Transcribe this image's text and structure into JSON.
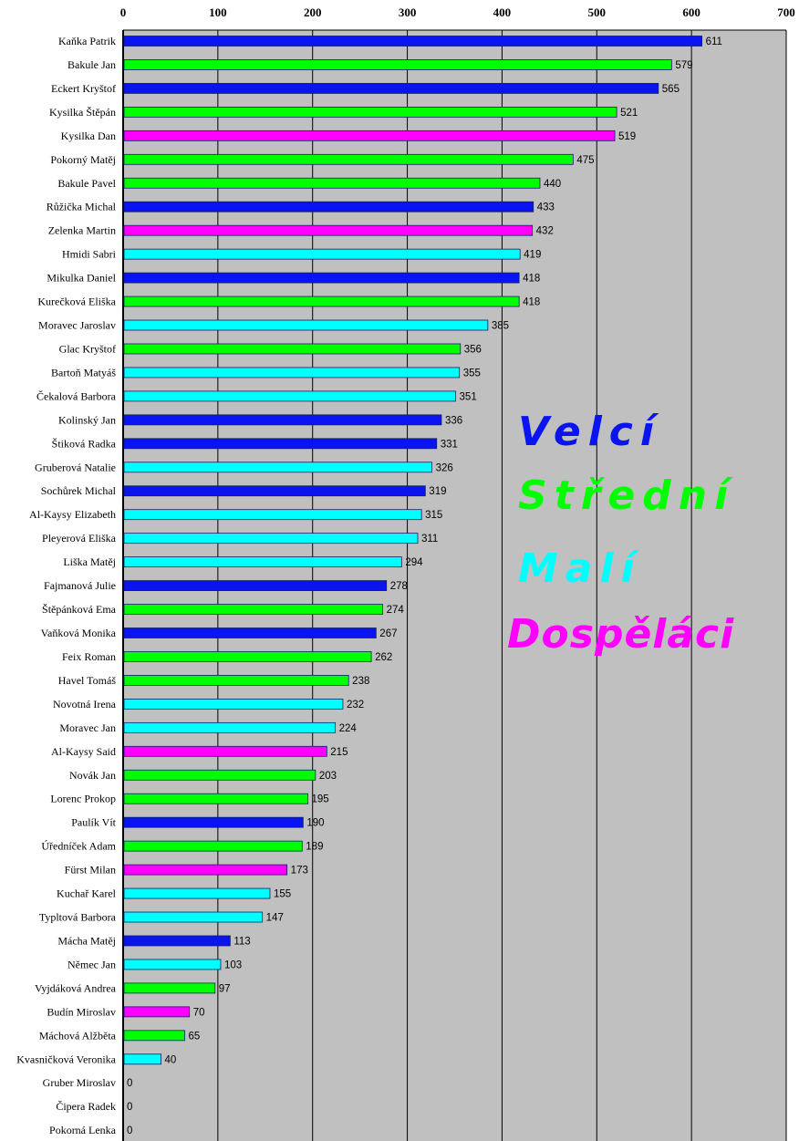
{
  "chart_data": {
    "type": "bar",
    "orientation": "horizontal",
    "title": "",
    "xlabel": "",
    "ylabel": "",
    "xlim": [
      0,
      700
    ],
    "xticks": [
      0,
      100,
      200,
      300,
      400,
      500,
      600,
      700
    ],
    "grid": true,
    "legend_position": "right-center",
    "groups": {
      "V": {
        "label": "Velcí",
        "color": "#0a14f0"
      },
      "S": {
        "label": "Střední",
        "color": "#00ff00"
      },
      "M": {
        "label": "Malí",
        "color": "#00ffff"
      },
      "D": {
        "label": "Dospěláci",
        "color": "#ff00ff"
      }
    },
    "categories": [
      "Kaňka Patrik",
      "Bakule Jan",
      "Eckert Kryštof",
      "Kysilka Štěpán",
      "Kysilka Dan",
      "Pokorný Matěj",
      "Bakule Pavel",
      "Růžička Michal",
      "Zelenka Martin",
      "Hmidi Sabri",
      "Mikulka Daniel",
      "Kurečková Eliška",
      "Moravec Jaroslav",
      "Glac Kryštof",
      "Bartoň Matyáš",
      "Čekalová Barbora",
      "Kolinský Jan",
      "Štiková Radka",
      "Gruberová Natalie",
      "Sochůrek Michal",
      "Al-Kaysy Elizabeth",
      "Pleyerová Eliška",
      "Liška Matěj",
      "Fajmanová Julie",
      "Štěpánková Ema",
      "Vaňková Monika",
      "Feix Roman",
      "Havel Tomáš",
      "Novotná Irena",
      "Moravec Jan",
      "Al-Kaysy Said",
      "Novák Jan",
      "Lorenc Prokop",
      "Paulík Vít",
      "Úředníček Adam",
      "Fürst Milan",
      "Kuchař Karel",
      "Typltová Barbora",
      "Mácha Matěj",
      "Němec Jan",
      "Vyjdáková Andrea",
      "Budín Miroslav",
      "Máchová Alžběta",
      "Kvasničková Veronika",
      "Gruber Miroslav",
      "Čipera Radek",
      "Pokorná Lenka"
    ],
    "values": [
      611,
      579,
      565,
      521,
      519,
      475,
      440,
      433,
      432,
      419,
      418,
      418,
      385,
      356,
      355,
      351,
      336,
      331,
      326,
      319,
      315,
      311,
      294,
      278,
      274,
      267,
      262,
      238,
      232,
      224,
      215,
      203,
      195,
      190,
      189,
      173,
      155,
      147,
      113,
      103,
      97,
      70,
      65,
      40,
      0,
      0,
      0
    ],
    "group_of": [
      "V",
      "S",
      "V",
      "S",
      "D",
      "S",
      "S",
      "V",
      "D",
      "M",
      "V",
      "S",
      "M",
      "S",
      "M",
      "M",
      "V",
      "V",
      "M",
      "V",
      "M",
      "M",
      "M",
      "V",
      "S",
      "V",
      "S",
      "S",
      "M",
      "M",
      "D",
      "S",
      "S",
      "V",
      "S",
      "D",
      "M",
      "M",
      "V",
      "M",
      "S",
      "D",
      "S",
      "M",
      "M",
      "M",
      "M"
    ]
  },
  "colors": {
    "plot_bg": "#c0c0c0",
    "grid": "#000000",
    "bar_border": "#102060"
  }
}
